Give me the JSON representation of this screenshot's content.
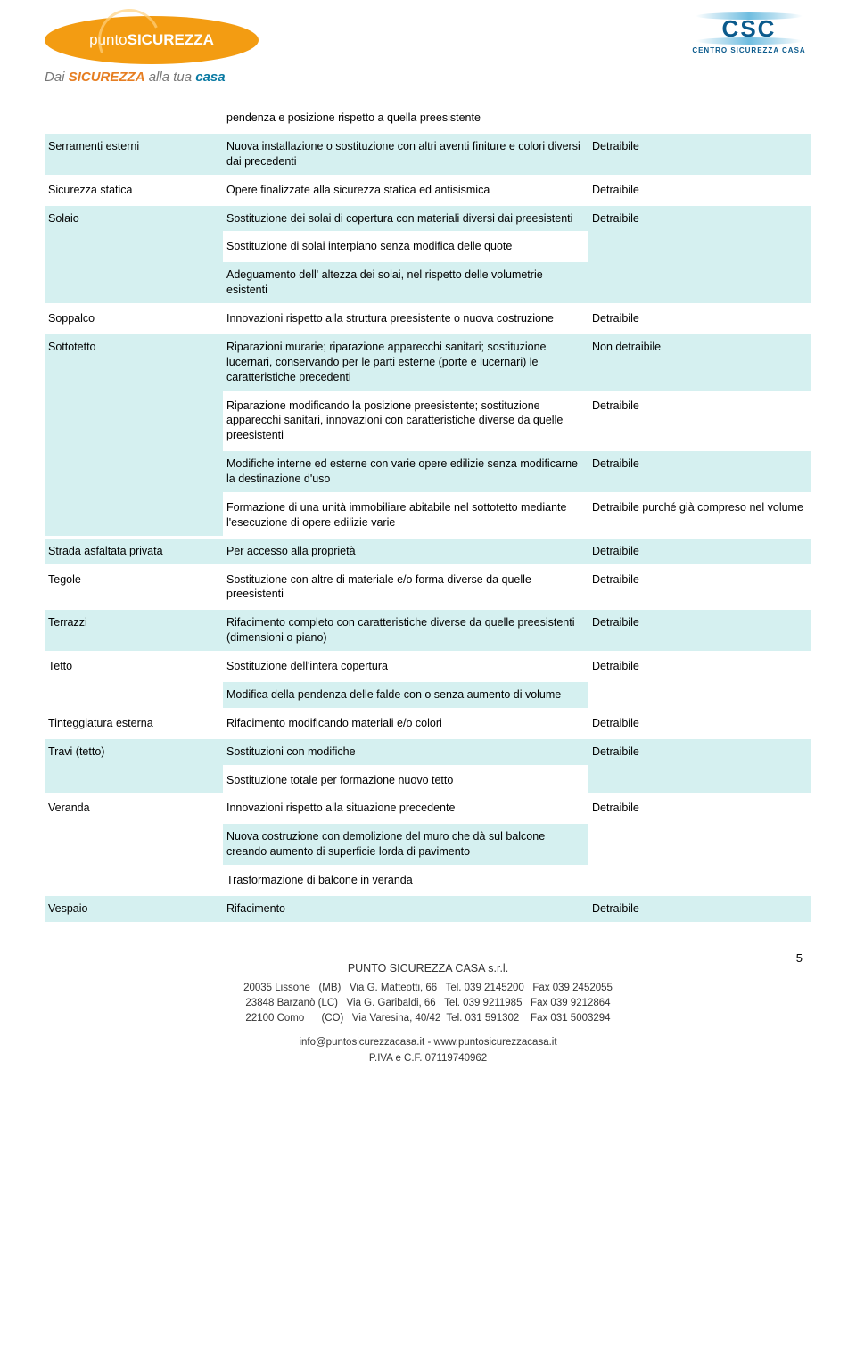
{
  "colors": {
    "band_bg": "#d5f0f0",
    "page_bg": "#ffffff",
    "text": "#000000",
    "brand_orange": "#f39c12",
    "brand_blue": "#0a7aa3",
    "csc_blue": "#0a5a8c"
  },
  "header": {
    "brand_prefix": "punto",
    "brand_main": "SICUREZZA",
    "tagline_pre": "Dai ",
    "tagline_word": "SICUREZZA",
    "tagline_post": " alla tua ",
    "tagline_emph": "casa",
    "csc_text": "CSC",
    "csc_sub": "CENTRO SICUREZZA CASA"
  },
  "rows": [
    {
      "band": false,
      "c1": "",
      "c2": "pendenza e posizione rispetto a quella preesistente",
      "c3": ""
    },
    {
      "band": true,
      "c1": "Serramenti esterni",
      "c2": "Nuova installazione o sostituzione con altri aventi finiture e colori diversi dai precedenti",
      "c3": "Detraibile"
    },
    {
      "band": false,
      "c1": "Sicurezza statica",
      "c2": "Opere finalizzate alla sicurezza statica ed antisismica",
      "c3": "Detraibile"
    },
    {
      "band": true,
      "c1": "Solaio",
      "c2": "Sostituzione dei solai di copertura con materiali diversi dai preesistenti",
      "c3": "Detraibile",
      "rowspan_c1": 3,
      "rowspan_c3": 3
    },
    {
      "sub": true,
      "c2_force": "plain",
      "c2": "Sostituzione di solai interpiano senza modifica delle quote"
    },
    {
      "sub": true,
      "c2_force": "band",
      "c2": "Adeguamento dell' altezza dei solai, nel rispetto delle volumetrie esistenti"
    },
    {
      "band": false,
      "c1": "Soppalco",
      "c2": "Innovazioni rispetto alla struttura preesistente o nuova costruzione",
      "c3": "Detraibile"
    },
    {
      "band": true,
      "c1": "Sottotetto",
      "c2": "Riparazioni murarie; riparazione apparecchi sanitari; sostituzione lucernari, conservando per le parti esterne (porte e lucernari) le caratteristiche precedenti",
      "c3": "Non detraibile",
      "rowspan_c1": 4
    },
    {
      "band": false,
      "c1_skip": true,
      "c2": "Riparazione modificando la posizione preesistente; sostituzione apparecchi sanitari, innovazioni con caratteristiche diverse da quelle preesistenti",
      "c3": "Detraibile"
    },
    {
      "band": true,
      "c1_skip": true,
      "c2": "Modifiche interne ed esterne con varie opere edilizie senza modificarne la destinazione d'uso",
      "c3": "Detraibile"
    },
    {
      "band": false,
      "c1_skip": true,
      "c2": "Formazione di una unità immobiliare abitabile nel sottotetto mediante l'esecuzione di opere edilizie varie",
      "c3": "Detraibile purché già compreso nel volume"
    },
    {
      "band": true,
      "c1": "Strada asfaltata privata",
      "c2": "Per accesso alla proprietà",
      "c3": "Detraibile"
    },
    {
      "band": false,
      "c1": "Tegole",
      "c2": "Sostituzione con altre di materiale e/o forma diverse da quelle preesistenti",
      "c3": "Detraibile"
    },
    {
      "band": true,
      "c1": "Terrazzi",
      "c2": "Rifacimento completo con caratteristiche diverse da quelle preesistenti (dimensioni o piano)",
      "c3": "Detraibile"
    },
    {
      "band": false,
      "c1": "Tetto",
      "c2": "Sostituzione dell'intera copertura",
      "c3": "Detraibile",
      "rowspan_c1": 2,
      "rowspan_c3": 2
    },
    {
      "sub": true,
      "c2_force": "band",
      "c2": "Modifica della pendenza delle falde con o senza aumento di volume"
    },
    {
      "band": false,
      "c1": "Tinteggiatura esterna",
      "c2": "Rifacimento modificando materiali e/o colori",
      "c3": "Detraibile"
    },
    {
      "band": true,
      "c1": "Travi (tetto)",
      "c2": "Sostituzioni con modifiche",
      "c3": "Detraibile",
      "rowspan_c1": 2,
      "rowspan_c3": 2
    },
    {
      "sub": true,
      "c2_force": "plain",
      "c2": "Sostituzione totale per formazione nuovo tetto"
    },
    {
      "band": false,
      "c1": "Veranda",
      "c2": "Innovazioni rispetto alla situazione precedente",
      "c3": "Detraibile",
      "rowspan_c1": 3,
      "rowspan_c3": 3
    },
    {
      "sub": true,
      "c2_force": "band",
      "c2": "Nuova costruzione con demolizione del muro che dà sul balcone creando aumento di superficie lorda di pavimento"
    },
    {
      "sub": true,
      "c2_force": "plain",
      "c2": "Trasformazione di balcone in veranda"
    },
    {
      "band": true,
      "c1": "Vespaio",
      "c2": "Rifacimento",
      "c3": "Detraibile"
    }
  ],
  "footer": {
    "company": "PUNTO SICUREZZA CASA s.r.l.",
    "lines": [
      "20035 Lissone   (MB)   Via G. Matteotti, 66   Tel. 039 2145200   Fax 039 2452055",
      "23848 Barzanò (LC)   Via G. Garibaldi, 66   Tel. 039 9211985   Fax 039 9212864",
      "22100 Como      (CO)   Via Varesina, 40/42  Tel. 031 591302    Fax 031 5003294"
    ],
    "web": "info@puntosicurezzacasa.it - www.puntosicurezzacasa.it",
    "piva": "P.IVA e C.F. 07119740962",
    "page_number": "5"
  }
}
